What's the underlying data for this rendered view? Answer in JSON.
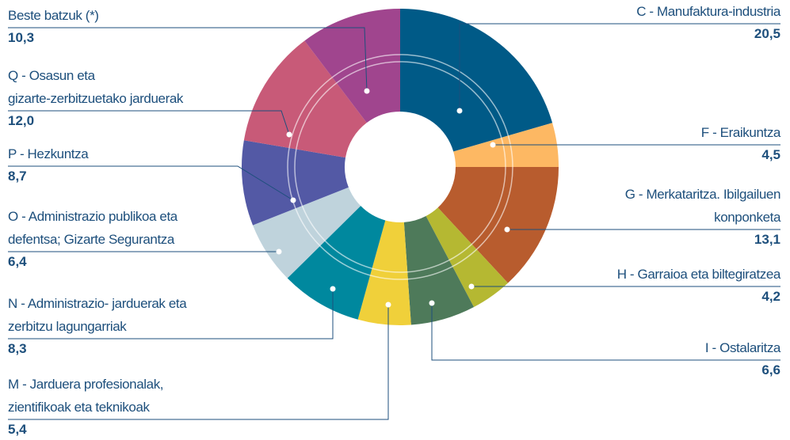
{
  "chart_data": {
    "type": "donut",
    "categories": [
      "C - Manufaktura-industria",
      "F - Eraikuntza",
      "G - Merkataritza. Ibilgailuen\nkonponketa",
      "H - Garraioa eta biltegiratzea",
      "I - Ostalaritza",
      "M - Jarduera profesionalak,\nzientifikoak eta teknikoak",
      "N - Administrazio- jarduerak eta\nzerbitzu lagungarriak",
      "O - Administrazio publikoa eta\ndefentsa; Gizarte Segurantza",
      "P - Hezkuntza",
      "Q - Osasun eta\ngizarte-zerbitzuetako jarduerak",
      "Beste batzuk (*)"
    ],
    "values": [
      20.5,
      4.5,
      13.1,
      4.2,
      6.6,
      5.4,
      8.3,
      6.4,
      8.7,
      12.0,
      10.3
    ],
    "value_labels": [
      "20,5",
      "4,5",
      "13,1",
      "4,2",
      "6,6",
      "5,4",
      "8,3",
      "6,4",
      "8,7",
      "12,0",
      "10,3"
    ],
    "colors": [
      "#005a87",
      "#fdb863",
      "#b85c2e",
      "#b5b832",
      "#4e7a5a",
      "#f0d03a",
      "#00889e",
      "#bfd3dc",
      "#5359a5",
      "#c85a78",
      "#a0458e"
    ]
  }
}
